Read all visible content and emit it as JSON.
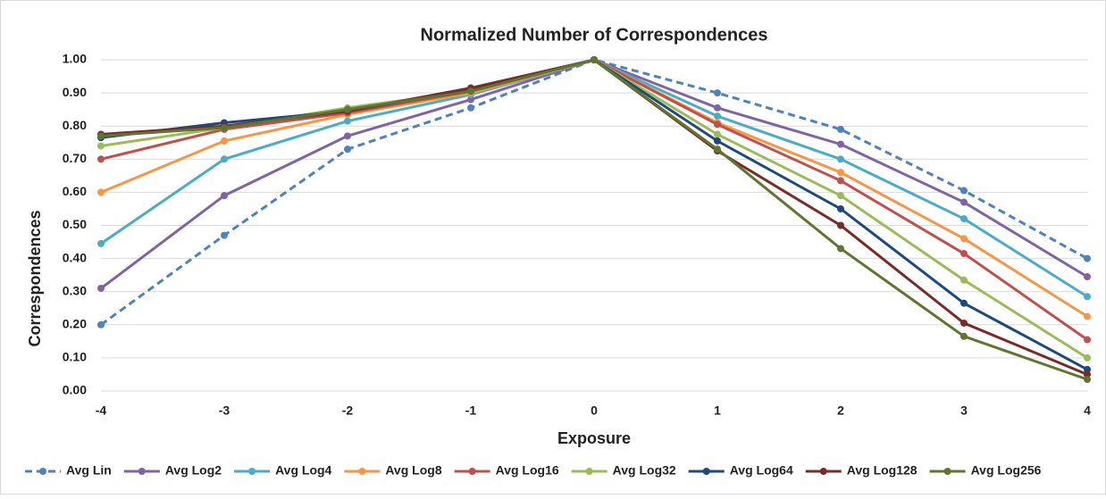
{
  "chart_data": {
    "type": "line",
    "title": "Normalized Number of Correspondences",
    "x_label": "Exposure",
    "y_label": "Correspondences",
    "x": [
      -4,
      -3,
      -2,
      -1,
      0,
      1,
      2,
      3,
      4
    ],
    "xlim": [
      -4,
      4
    ],
    "ylim": [
      0,
      1
    ],
    "yticks": [
      {
        "value": 0,
        "label": "0.00"
      },
      {
        "value": 0.1,
        "label": "0.10"
      },
      {
        "value": 0.2,
        "label": "0.20"
      },
      {
        "value": 0.3,
        "label": "0.30"
      },
      {
        "value": 0.4,
        "label": "0.40"
      },
      {
        "value": 0.5,
        "label": "0.50"
      },
      {
        "value": 0.6,
        "label": "0.60"
      },
      {
        "value": 0.7,
        "label": "0.70"
      },
      {
        "value": 0.8,
        "label": "0.80"
      },
      {
        "value": 0.9,
        "label": "0.90"
      },
      {
        "value": 1,
        "label": "1.00"
      }
    ],
    "grid": true,
    "legend": "bottom",
    "series": [
      {
        "name": "Avg Lin",
        "color": "#4f81bd",
        "line_style": "dashed",
        "values": [
          0.2,
          0.47,
          0.73,
          0.855,
          1.0,
          0.9,
          0.79,
          0.605,
          0.4
        ]
      },
      {
        "name": "Avg Log2",
        "color": "#8064a2",
        "values": [
          0.31,
          0.59,
          0.77,
          0.88,
          1.0,
          0.855,
          0.745,
          0.57,
          0.345
        ]
      },
      {
        "name": "Avg Log4",
        "color": "#4bacc6",
        "values": [
          0.445,
          0.7,
          0.815,
          0.895,
          1.0,
          0.83,
          0.7,
          0.52,
          0.285
        ]
      },
      {
        "name": "Avg Log8",
        "color": "#f79646",
        "values": [
          0.6,
          0.755,
          0.835,
          0.9,
          1.0,
          0.81,
          0.66,
          0.46,
          0.225
        ]
      },
      {
        "name": "Avg Log16",
        "color": "#c0504d",
        "values": [
          0.7,
          0.79,
          0.84,
          0.905,
          1.0,
          0.805,
          0.635,
          0.415,
          0.155
        ]
      },
      {
        "name": "Avg Log32",
        "color": "#9bbb59",
        "values": [
          0.74,
          0.795,
          0.855,
          0.905,
          1.0,
          0.775,
          0.59,
          0.335,
          0.1
        ]
      },
      {
        "name": "Avg Log64",
        "color": "#1f497d",
        "values": [
          0.765,
          0.81,
          0.845,
          0.91,
          1.0,
          0.755,
          0.55,
          0.265,
          0.065
        ]
      },
      {
        "name": "Avg Log128",
        "color": "#772c2a",
        "values": [
          0.775,
          0.8,
          0.845,
          0.915,
          1.0,
          0.725,
          0.5,
          0.205,
          0.05
        ]
      },
      {
        "name": "Avg Log256",
        "color": "#5f7530",
        "values": [
          0.77,
          0.795,
          0.85,
          0.905,
          1.0,
          0.73,
          0.43,
          0.165,
          0.035
        ]
      }
    ]
  }
}
